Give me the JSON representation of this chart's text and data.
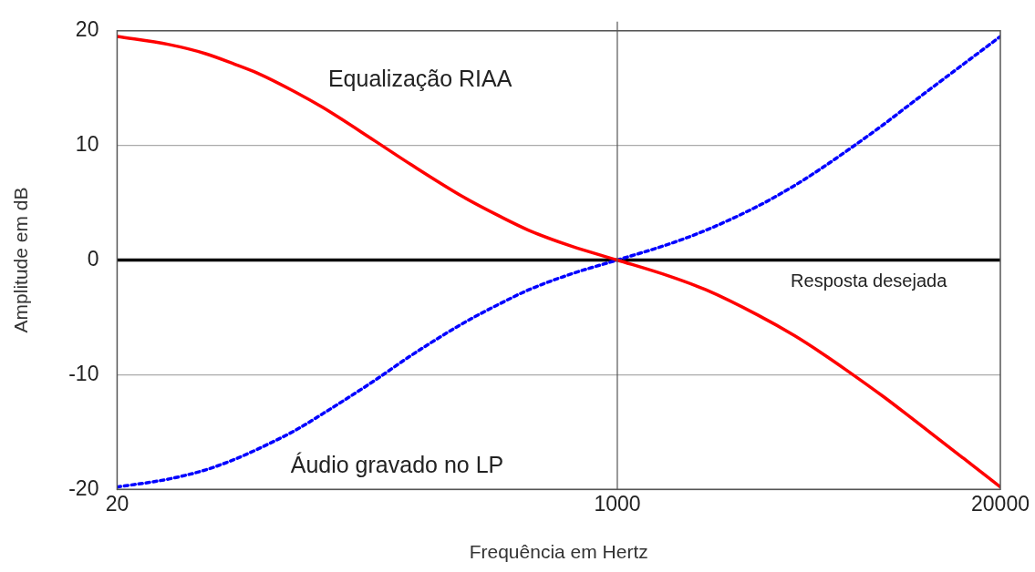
{
  "chart_data": {
    "type": "line",
    "xlabel": "Frequência em Hertz",
    "ylabel": "Amplitude em dB",
    "log": "x",
    "xlim": [
      20,
      20000
    ],
    "xticks": [
      20,
      1000,
      20000
    ],
    "ylim": [
      -20,
      20
    ],
    "yticks": [
      -20,
      -10,
      0,
      10,
      20
    ],
    "grid": "y",
    "ref_lines": [
      {
        "axis": "x",
        "value": 1000,
        "color": "#555555"
      }
    ],
    "legend": false,
    "marker": "none",
    "series": [
      {
        "name": "Equalização RIAA",
        "color": "#ff0000",
        "line_style": "solid",
        "x": [
          20,
          30,
          40,
          50,
          60,
          80,
          100,
          150,
          200,
          300,
          400,
          500,
          700,
          1000,
          1500,
          2000,
          3000,
          4000,
          5000,
          6000,
          8000,
          10000,
          15000,
          20000
        ],
        "values": [
          19.5,
          18.8,
          18,
          17.1,
          16.3,
          14.7,
          13.3,
          10.4,
          8.3,
          5.5,
          3.8,
          2.6,
          1.2,
          0,
          -1.4,
          -2.6,
          -4.8,
          -6.6,
          -8.2,
          -9.6,
          -11.9,
          -13.8,
          -17.3,
          -19.8
        ]
      },
      {
        "name": "Áudio gravado no LP",
        "color": "#0000ff",
        "line_style": "dotted",
        "x": [
          20,
          30,
          40,
          50,
          60,
          80,
          100,
          150,
          200,
          300,
          400,
          500,
          700,
          1000,
          1500,
          2000,
          3000,
          4000,
          5000,
          6000,
          8000,
          10000,
          15000,
          20000
        ],
        "values": [
          -19.8,
          -19.1,
          -18.3,
          -17.4,
          -16.5,
          -14.9,
          -13.4,
          -10.5,
          -8.3,
          -5.5,
          -3.8,
          -2.6,
          -1.2,
          0,
          1.4,
          2.6,
          4.7,
          6.5,
          8.1,
          9.5,
          11.8,
          13.7,
          17.1,
          19.5
        ]
      },
      {
        "name": "Resposta desejada",
        "color": "#000000",
        "line_style": "solid",
        "x": [
          20,
          20000
        ],
        "values": [
          0,
          0
        ]
      }
    ]
  }
}
